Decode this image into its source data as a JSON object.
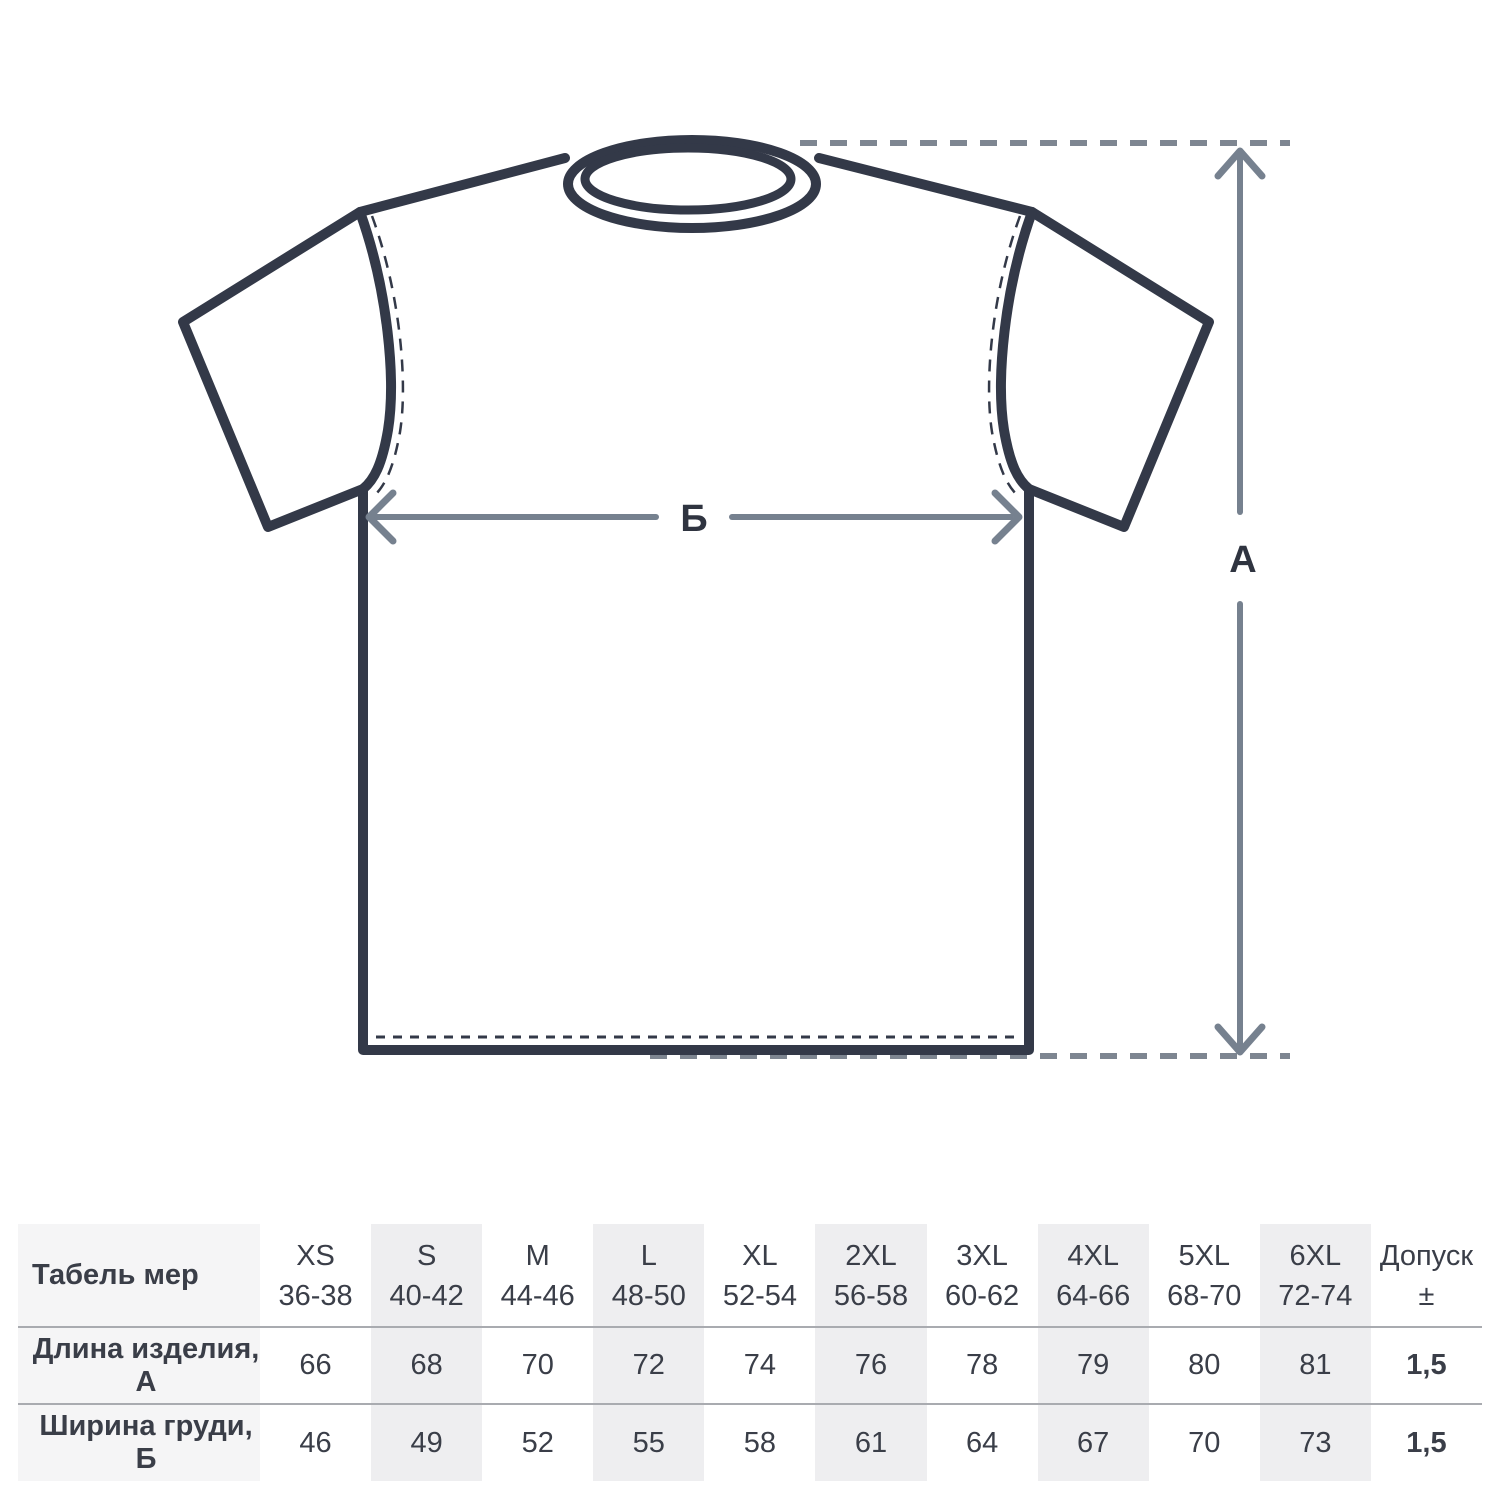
{
  "diagram": {
    "label_length": "А",
    "label_width": "Б"
  },
  "table": {
    "title": "Табель мер",
    "rows": [
      {
        "label": "Длина изделия, А"
      },
      {
        "label": "Ширина груди, Б"
      }
    ],
    "columns": [
      {
        "size": "XS",
        "range": "36-38",
        "length": "66",
        "width": "46",
        "shaded": false,
        "bold": false
      },
      {
        "size": "S",
        "range": "40-42",
        "length": "68",
        "width": "49",
        "shaded": true,
        "bold": false
      },
      {
        "size": "M",
        "range": "44-46",
        "length": "70",
        "width": "52",
        "shaded": false,
        "bold": false
      },
      {
        "size": "L",
        "range": "48-50",
        "length": "72",
        "width": "55",
        "shaded": true,
        "bold": false
      },
      {
        "size": "XL",
        "range": "52-54",
        "length": "74",
        "width": "58",
        "shaded": false,
        "bold": false
      },
      {
        "size": "2XL",
        "range": "56-58",
        "length": "76",
        "width": "61",
        "shaded": true,
        "bold": false
      },
      {
        "size": "3XL",
        "range": "60-62",
        "length": "78",
        "width": "64",
        "shaded": false,
        "bold": false
      },
      {
        "size": "4XL",
        "range": "64-66",
        "length": "79",
        "width": "67",
        "shaded": true,
        "bold": false
      },
      {
        "size": "5XL",
        "range": "68-70",
        "length": "80",
        "width": "70",
        "shaded": false,
        "bold": false
      },
      {
        "size": "6XL",
        "range": "72-74",
        "length": "81",
        "width": "73",
        "shaded": true,
        "bold": false
      },
      {
        "size": "Допуск",
        "range": "±",
        "length": "1,5",
        "width": "1,5",
        "shaded": false,
        "bold": true
      }
    ]
  },
  "colors": {
    "shirt_outline": "#333948",
    "dimension_arrow": "#76818F",
    "dimension_label": "#2F3440",
    "dashed_guide": "#7E8691",
    "table_text": "#3A3E48",
    "band": "#EEEEF0",
    "band_label": "#F5F5F6",
    "separator": "#A9ABB0"
  }
}
